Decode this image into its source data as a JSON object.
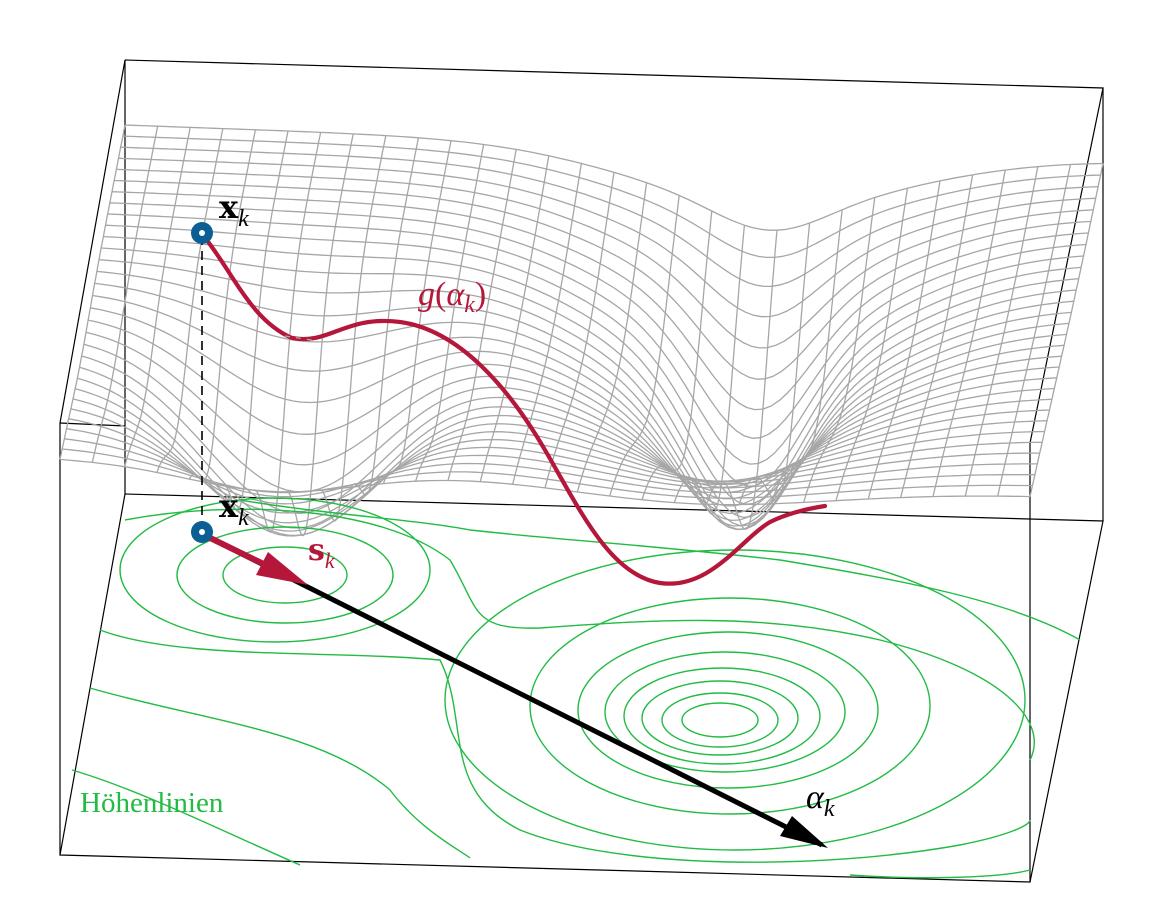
{
  "colors": {
    "mesh": "#a6a6a6",
    "path": "#b5173b",
    "contour": "#22bb44",
    "point": "#0b5f95",
    "axis": "#000000",
    "box": "#000000"
  },
  "labels": {
    "x_upper_base": "x",
    "x_upper_sub": "k",
    "x_lower_base": "x",
    "x_lower_sub": "k",
    "g_func": "g",
    "g_paren_open": "(",
    "g_arg_base": "α",
    "g_arg_sub": "k",
    "g_paren_close": ")",
    "s_base": "s",
    "s_sub": "k",
    "alpha_base": "α",
    "alpha_sub": "k",
    "contour_caption": "Höhenlinien"
  },
  "icons": {
    "point": "circle-marker-icon",
    "arrow": "arrow-icon"
  }
}
